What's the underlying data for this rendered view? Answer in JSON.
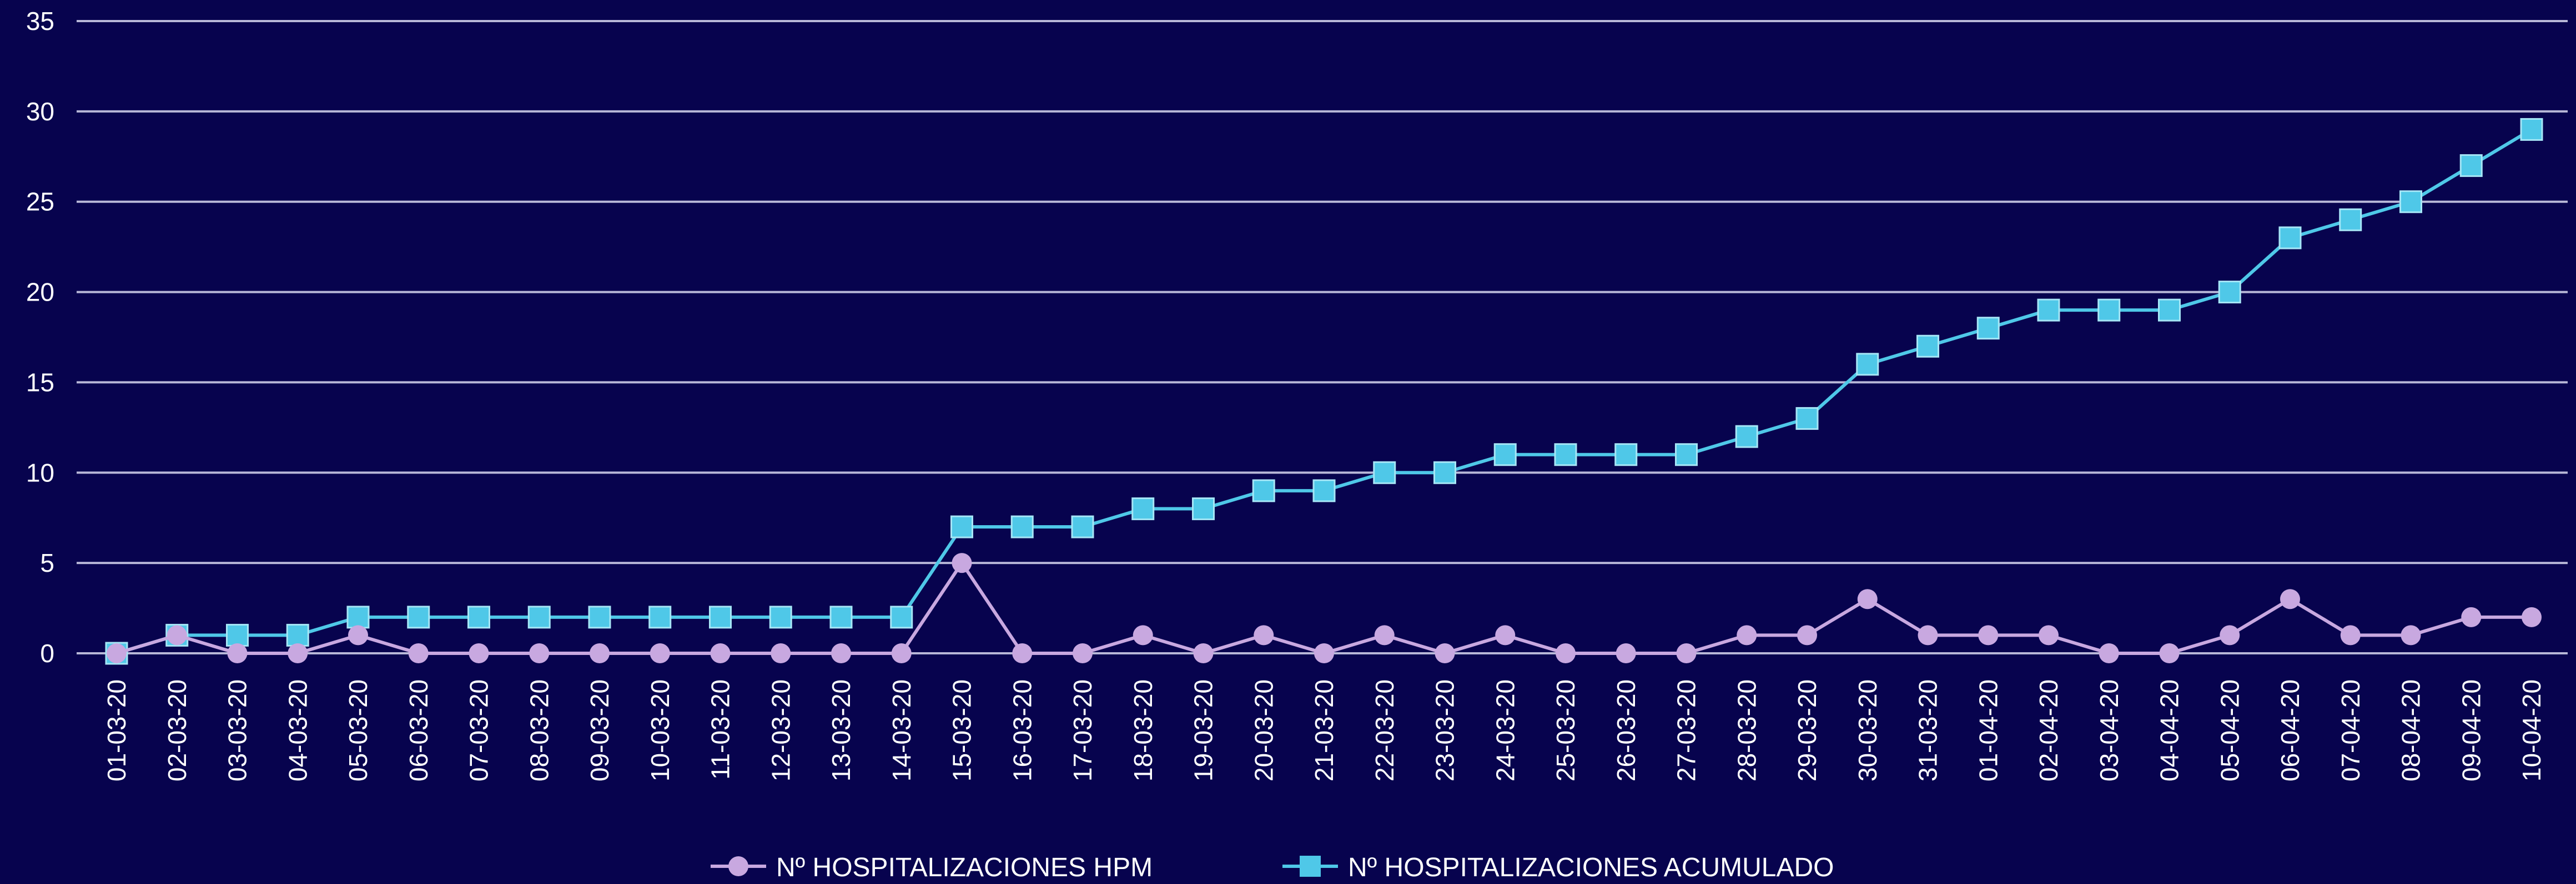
{
  "chart_data": {
    "type": "line",
    "title": "",
    "xlabel": "",
    "ylabel": "",
    "ylim": [
      0,
      35
    ],
    "yticks": [
      "0",
      "5",
      "10",
      "15",
      "20",
      "25",
      "30",
      "35"
    ],
    "grid": true,
    "legend_position": "bottom",
    "categories": [
      "01-03-20",
      "02-03-20",
      "03-03-20",
      "04-03-20",
      "05-03-20",
      "06-03-20",
      "07-03-20",
      "08-03-20",
      "09-03-20",
      "10-03-20",
      "11-03-20",
      "12-03-20",
      "13-03-20",
      "14-03-20",
      "15-03-20",
      "16-03-20",
      "17-03-20",
      "18-03-20",
      "19-03-20",
      "20-03-20",
      "21-03-20",
      "22-03-20",
      "23-03-20",
      "24-03-20",
      "25-03-20",
      "26-03-20",
      "27-03-20",
      "28-03-20",
      "29-03-20",
      "30-03-20",
      "31-03-20",
      "01-04-20",
      "02-04-20",
      "03-04-20",
      "04-04-20",
      "05-04-20",
      "06-04-20",
      "07-04-20",
      "08-04-20",
      "09-04-20",
      "10-04-20"
    ],
    "series": [
      {
        "name": "Nº HOSPITALIZACIONES HPM",
        "color": "#c8a8e0",
        "marker": "circle",
        "values": [
          0,
          1,
          0,
          0,
          1,
          0,
          0,
          0,
          0,
          0,
          0,
          0,
          0,
          0,
          5,
          0,
          0,
          1,
          0,
          1,
          0,
          1,
          0,
          1,
          0,
          0,
          0,
          1,
          1,
          3,
          1,
          1,
          1,
          0,
          0,
          1,
          3,
          1,
          1,
          2,
          2
        ]
      },
      {
        "name": "Nº HOSPITALIZACIONES ACUMULADO",
        "color": "#4fc8e8",
        "marker": "square",
        "values": [
          0,
          1,
          1,
          1,
          2,
          2,
          2,
          2,
          2,
          2,
          2,
          2,
          2,
          2,
          7,
          7,
          7,
          8,
          8,
          9,
          9,
          10,
          10,
          11,
          11,
          11,
          11,
          12,
          13,
          16,
          17,
          18,
          19,
          19,
          19,
          20,
          23,
          24,
          25,
          27,
          29
        ]
      }
    ],
    "colors": {
      "background": "#07034e",
      "grid": "#b8b8d8",
      "text": "#ffffff"
    }
  }
}
